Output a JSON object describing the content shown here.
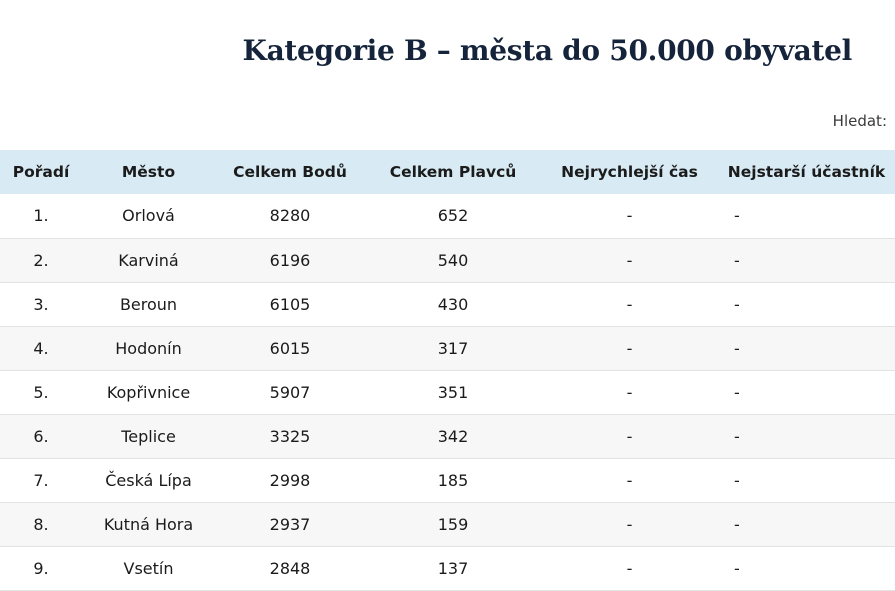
{
  "page": {
    "title": "Kategorie B – města do 50.000 obyvatel"
  },
  "search": {
    "label": "Hledat:"
  },
  "table": {
    "headers": [
      "Pořadí",
      "Město",
      "Celkem Bodů",
      "Celkem Plavců",
      "Nejrychlejší čas",
      "Nejstarší účastník"
    ],
    "rows": [
      [
        "1.",
        "Orlová",
        "8280",
        "652",
        "-",
        "-"
      ],
      [
        "2.",
        "Karviná",
        "6196",
        "540",
        "-",
        "-"
      ],
      [
        "3.",
        "Beroun",
        "6105",
        "430",
        "-",
        "-"
      ],
      [
        "4.",
        "Hodonín",
        "6015",
        "317",
        "-",
        "-"
      ],
      [
        "5.",
        "Kopřivnice",
        "5907",
        "351",
        "-",
        "-"
      ],
      [
        "6.",
        "Teplice",
        "3325",
        "342",
        "-",
        "-"
      ],
      [
        "7.",
        "Česká Lípa",
        "2998",
        "185",
        "-",
        "-"
      ],
      [
        "8.",
        "Kutná Hora",
        "2937",
        "159",
        "-",
        "-"
      ],
      [
        "9.",
        "Vsetín",
        "2848",
        "137",
        "-",
        "-"
      ]
    ]
  },
  "colors": {
    "header_bg": "#d8ebf5",
    "title": "#15243a",
    "stripe": "#f7f7f7"
  }
}
